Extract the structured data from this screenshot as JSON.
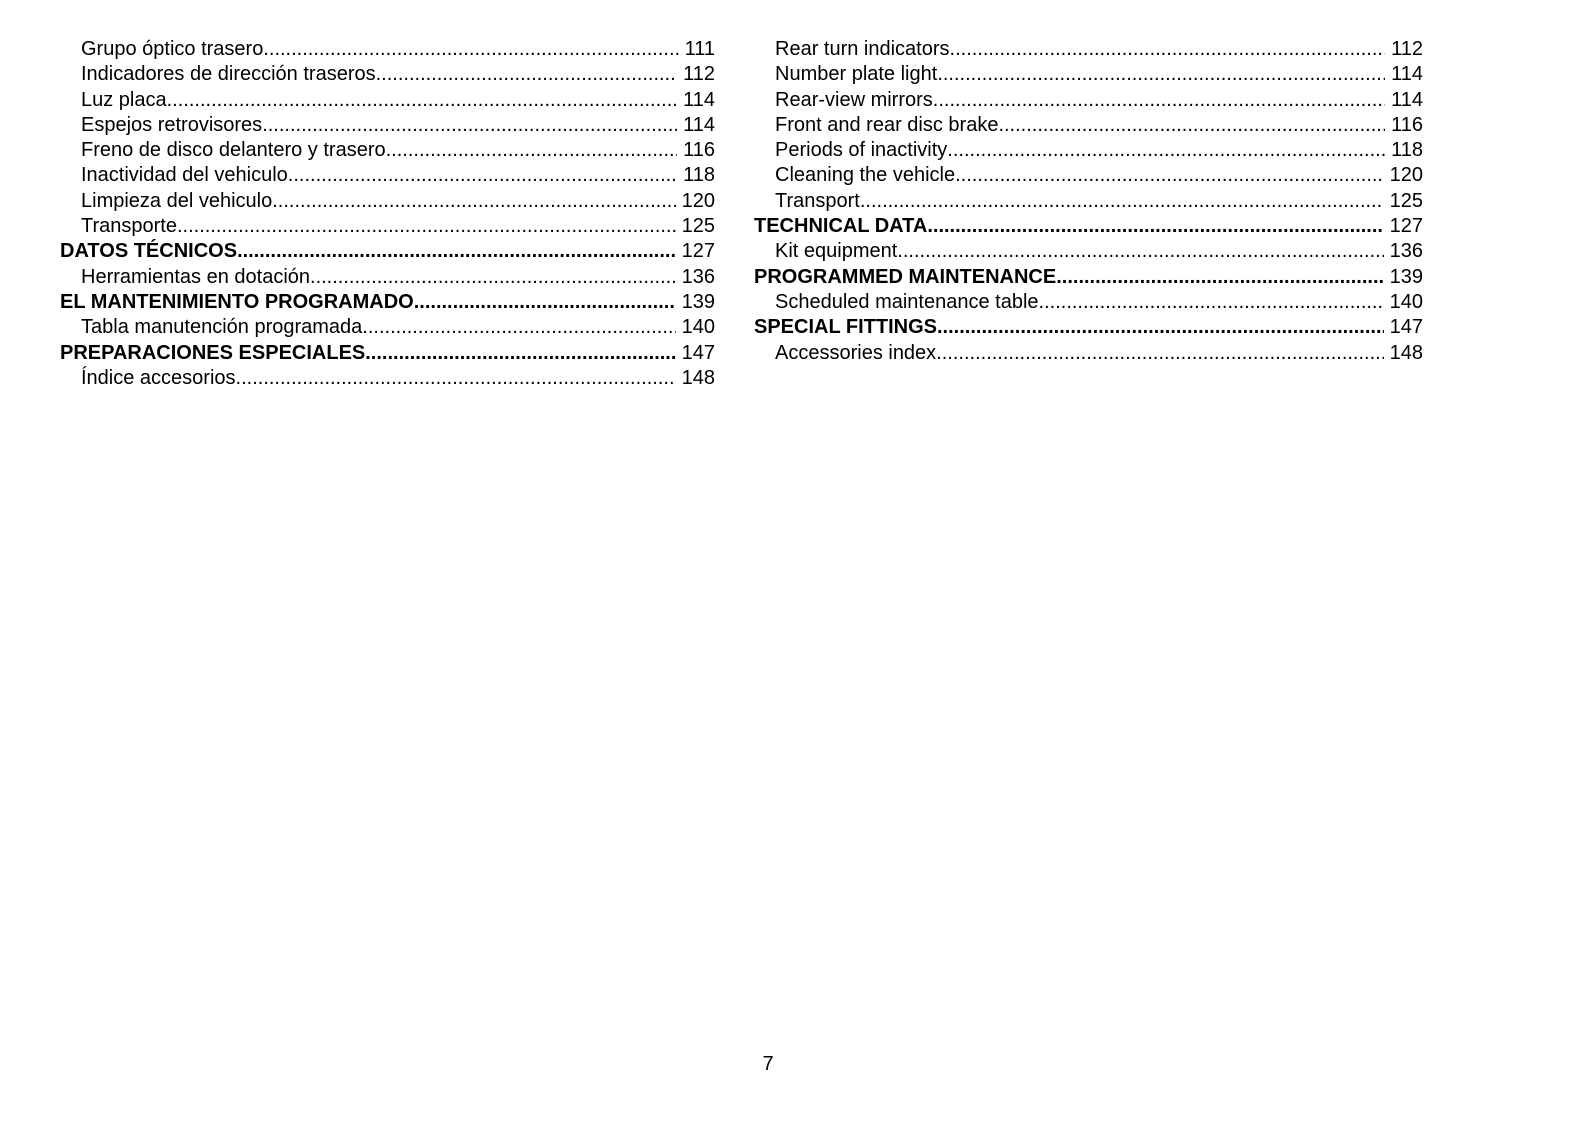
{
  "left": [
    {
      "title": "Grupo óptico trasero",
      "page": "111",
      "level": "sub"
    },
    {
      "title": "Indicadores de dirección traseros",
      "page": "112",
      "level": "sub"
    },
    {
      "title": "Luz placa",
      "page": "114",
      "level": "sub"
    },
    {
      "title": "Espejos retrovisores",
      "page": "114",
      "level": "sub"
    },
    {
      "title": "Freno de disco delantero y trasero",
      "page": "116",
      "level": "sub"
    },
    {
      "title": "Inactividad del vehiculo",
      "page": "118",
      "level": "sub"
    },
    {
      "title": "Limpieza del vehiculo",
      "page": "120",
      "level": "sub"
    },
    {
      "title": "Transporte",
      "page": "125",
      "level": "sub"
    },
    {
      "title": "DATOS TÉCNICOS",
      "page": "127",
      "level": "bold"
    },
    {
      "title": "Herramientas en dotación",
      "page": "136",
      "level": "sub"
    },
    {
      "title": "EL MANTENIMIENTO PROGRAMADO",
      "page": "139",
      "level": "bold"
    },
    {
      "title": "Tabla manutención programada",
      "page": "140",
      "level": "sub"
    },
    {
      "title": "PREPARACIONES ESPECIALES",
      "page": "147",
      "level": "bold"
    },
    {
      "title": "Índice accesorios",
      "page": "148",
      "level": "sub"
    }
  ],
  "right": [
    {
      "title": "Rear turn indicators",
      "page": "112",
      "level": "sub"
    },
    {
      "title": "Number plate light",
      "page": "114",
      "level": "sub"
    },
    {
      "title": "Rear-view mirrors",
      "page": "114",
      "level": "sub"
    },
    {
      "title": "Front and rear disc brake",
      "page": "116",
      "level": "sub"
    },
    {
      "title": "Periods of inactivity",
      "page": "118",
      "level": "sub"
    },
    {
      "title": "Cleaning the vehicle",
      "page": "120",
      "level": "sub"
    },
    {
      "title": "Transport",
      "page": "125",
      "level": "sub"
    },
    {
      "title": "TECHNICAL DATA",
      "page": "127",
      "level": "bold"
    },
    {
      "title": "Kit equipment",
      "page": "136",
      "level": "sub"
    },
    {
      "title": "PROGRAMMED MAINTENANCE",
      "page": "139",
      "level": "bold"
    },
    {
      "title": "Scheduled maintenance table",
      "page": "140",
      "level": "sub"
    },
    {
      "title": "SPECIAL FITTINGS",
      "page": "147",
      "level": "bold"
    },
    {
      "title": "Accessories index",
      "page": "148",
      "level": "sub"
    }
  ],
  "page_number": "7"
}
